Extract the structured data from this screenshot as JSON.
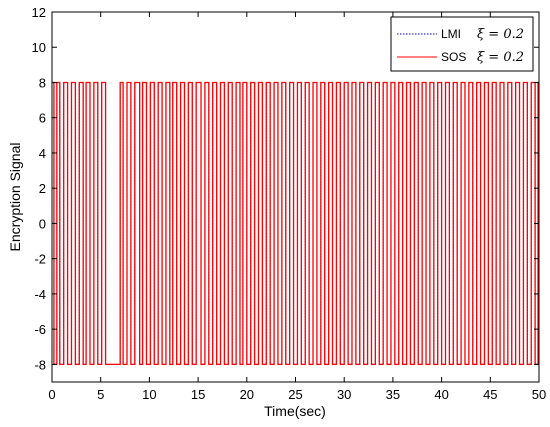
{
  "chart_data": {
    "type": "line",
    "xlabel": "Time(sec)",
    "ylabel": "Encryption Signal",
    "xlim": [
      0,
      50
    ],
    "ylim": [
      -9,
      12
    ],
    "xticks": [
      0,
      5,
      10,
      15,
      20,
      25,
      30,
      35,
      40,
      45,
      50
    ],
    "yticks": [
      -8,
      -6,
      -4,
      -2,
      0,
      2,
      4,
      6,
      8,
      10,
      12
    ],
    "grid": false,
    "legend_position": "top-right",
    "signal_amplitude": 8,
    "series": [
      {
        "name": "LMI",
        "legend_label": "LMI",
        "legend_symbol": "ξ = 0.2",
        "color": "#0000ff",
        "style": "dotted",
        "description": "square wave switching between -8 and 8 (hidden behind SOS trace)"
      },
      {
        "name": "SOS",
        "legend_label": "SOS",
        "legend_symbol": "ξ = 0.2",
        "color": "#ff0000",
        "style": "solid",
        "switch_times": [
          0.2,
          0.5,
          0.8,
          1.2,
          1.6,
          2.0,
          2.4,
          2.8,
          3.2,
          3.5,
          3.9,
          4.3,
          4.7,
          5.1,
          5.5,
          7.0,
          7.3,
          7.7,
          8.1,
          8.5,
          9.0,
          9.3,
          9.7,
          10.1,
          10.5,
          10.9,
          11.3,
          11.7,
          12.1,
          12.4,
          12.8,
          13.2,
          13.6,
          14.0,
          14.4,
          14.8,
          15.3,
          15.7,
          16.1,
          16.5,
          16.9,
          17.3,
          17.7,
          18.1,
          18.5,
          18.9,
          19.3,
          19.6,
          20.0,
          20.4,
          20.8,
          21.2,
          21.6,
          22.0,
          22.4,
          22.8,
          23.2,
          23.6,
          24.0,
          24.4,
          24.8,
          25.2,
          25.6,
          26.0,
          26.4,
          26.8,
          27.2,
          27.6,
          28.0,
          28.4,
          28.8,
          29.2,
          29.6,
          30.0,
          30.4,
          30.8,
          31.2,
          31.6,
          32.0,
          32.4,
          32.8,
          33.2,
          33.6,
          34.0,
          34.4,
          34.8,
          35.2,
          35.6,
          36.0,
          36.4,
          36.8,
          37.2,
          37.6,
          38.0,
          38.4,
          38.8,
          39.2,
          39.6,
          40.0,
          40.4,
          40.8,
          41.2,
          41.6,
          42.0,
          42.4,
          42.8,
          43.2,
          43.6,
          44.0,
          44.4,
          44.8,
          45.2,
          45.6,
          46.0,
          46.4,
          46.8,
          47.2,
          47.6,
          48.0,
          48.4,
          48.8,
          49.2,
          49.6,
          49.9
        ]
      }
    ]
  }
}
